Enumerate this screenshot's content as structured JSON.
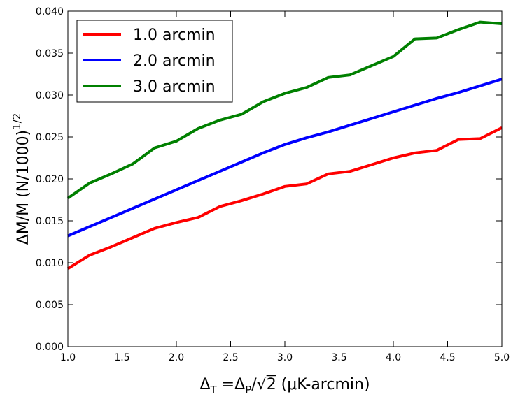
{
  "chart_data": {
    "type": "line",
    "title": "",
    "xlabel": {
      "delta": "Δ",
      "sub_t": "T",
      "eq": " =",
      "sub_p": "P",
      "slash": "/",
      "sqrt": "√",
      "two": "2",
      "unit": " (μK-arcmin)"
    },
    "ylabel": {
      "text": "ΔM/M (N/1000)",
      "exponent": "1/2"
    },
    "xlim": [
      1.0,
      5.0
    ],
    "ylim": [
      0.0,
      0.04
    ],
    "xticks": [
      "1.0",
      "1.5",
      "2.0",
      "2.5",
      "3.0",
      "3.5",
      "4.0",
      "4.5",
      "5.0"
    ],
    "yticks": [
      "0.000",
      "0.005",
      "0.010",
      "0.015",
      "0.020",
      "0.025",
      "0.030",
      "0.035",
      "0.040"
    ],
    "grid": false,
    "legend_position": "top-left",
    "x": [
      1.0,
      1.2,
      1.4,
      1.6,
      1.8,
      2.0,
      2.2,
      2.4,
      2.6,
      2.8,
      3.0,
      3.2,
      3.4,
      3.6,
      3.8,
      4.0,
      4.2,
      4.4,
      4.6,
      4.8,
      5.0
    ],
    "series": [
      {
        "name": "1.0 arcmin",
        "color": "#ff0000",
        "values": [
          0.0093,
          0.0109,
          0.0119,
          0.013,
          0.0141,
          0.0148,
          0.0154,
          0.0167,
          0.0174,
          0.0182,
          0.0191,
          0.0194,
          0.0206,
          0.0209,
          0.0217,
          0.0225,
          0.0231,
          0.0234,
          0.0247,
          0.0248,
          0.0261
        ]
      },
      {
        "name": "2.0 arcmin",
        "color": "#0000ff",
        "values": [
          0.0132,
          0.0143,
          0.0154,
          0.0165,
          0.0176,
          0.0187,
          0.0198,
          0.0209,
          0.022,
          0.0231,
          0.0241,
          0.0249,
          0.0256,
          0.0264,
          0.0272,
          0.028,
          0.0288,
          0.0296,
          0.0303,
          0.0311,
          0.0319
        ]
      },
      {
        "name": "3.0 arcmin",
        "color": "#008000",
        "values": [
          0.0177,
          0.0195,
          0.0206,
          0.0218,
          0.0237,
          0.0245,
          0.026,
          0.027,
          0.0277,
          0.0292,
          0.0302,
          0.0309,
          0.0321,
          0.0324,
          0.0335,
          0.0346,
          0.0367,
          0.0368,
          0.0378,
          0.0387,
          0.0385
        ]
      }
    ]
  }
}
